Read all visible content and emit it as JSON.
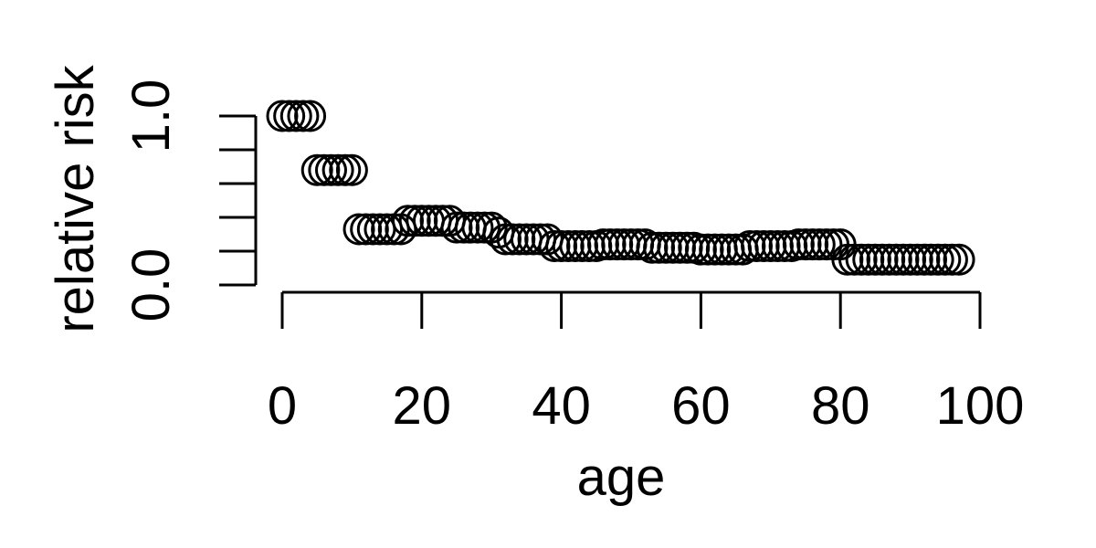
{
  "chart_data": {
    "type": "scatter",
    "xlabel": "age",
    "ylabel": "relative risk",
    "xlim": [
      0,
      100
    ],
    "ylim": [
      0,
      1.0
    ],
    "x_ticks": [
      "0",
      "20",
      "40",
      "60",
      "80",
      "100"
    ],
    "y_ticks": [
      "0.0",
      "",
      "",
      "",
      "",
      "1.0"
    ],
    "marker": "open-circle",
    "x": [
      0,
      1,
      2,
      3,
      4,
      5,
      6,
      7,
      8,
      9,
      10,
      11,
      12,
      13,
      14,
      15,
      16,
      17,
      18,
      19,
      20,
      21,
      22,
      23,
      24,
      25,
      26,
      27,
      28,
      29,
      30,
      31,
      32,
      33,
      34,
      35,
      36,
      37,
      38,
      39,
      40,
      41,
      42,
      43,
      44,
      45,
      46,
      47,
      48,
      49,
      50,
      51,
      52,
      53,
      54,
      55,
      56,
      57,
      58,
      59,
      60,
      61,
      62,
      63,
      64,
      65,
      66,
      67,
      68,
      69,
      70,
      71,
      72,
      73,
      74,
      75,
      76,
      77,
      78,
      79,
      80,
      81,
      82,
      83,
      84,
      85,
      86,
      87,
      88,
      89,
      90,
      91,
      92,
      93,
      94,
      95,
      96,
      97
    ],
    "y": [
      1.0,
      1.0,
      1.0,
      1.0,
      1.0,
      0.68,
      0.68,
      0.68,
      0.68,
      0.68,
      0.68,
      0.33,
      0.33,
      0.33,
      0.33,
      0.33,
      0.33,
      0.33,
      0.38,
      0.38,
      0.38,
      0.38,
      0.38,
      0.38,
      0.38,
      0.34,
      0.34,
      0.34,
      0.34,
      0.34,
      0.34,
      0.31,
      0.27,
      0.27,
      0.27,
      0.27,
      0.27,
      0.27,
      0.27,
      0.23,
      0.23,
      0.23,
      0.23,
      0.23,
      0.23,
      0.23,
      0.24,
      0.24,
      0.24,
      0.24,
      0.24,
      0.24,
      0.24,
      0.22,
      0.22,
      0.22,
      0.22,
      0.22,
      0.22,
      0.22,
      0.21,
      0.21,
      0.21,
      0.21,
      0.21,
      0.21,
      0.21,
      0.23,
      0.23,
      0.23,
      0.23,
      0.23,
      0.23,
      0.23,
      0.24,
      0.24,
      0.24,
      0.24,
      0.24,
      0.24,
      0.24,
      0.15,
      0.15,
      0.15,
      0.15,
      0.15,
      0.15,
      0.15,
      0.15,
      0.15,
      0.15,
      0.15,
      0.15,
      0.15,
      0.15,
      0.15,
      0.15,
      0.15
    ]
  }
}
